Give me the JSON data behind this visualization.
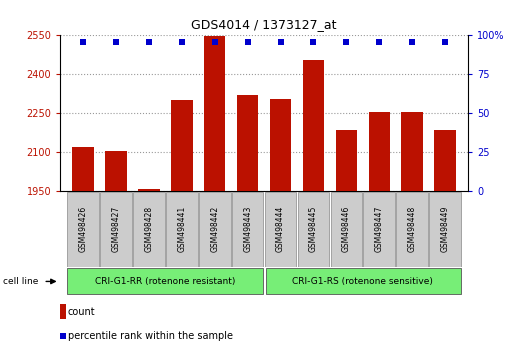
{
  "title": "GDS4014 / 1373127_at",
  "samples": [
    "GSM498426",
    "GSM498427",
    "GSM498428",
    "GSM498441",
    "GSM498442",
    "GSM498443",
    "GSM498444",
    "GSM498445",
    "GSM498446",
    "GSM498447",
    "GSM498448",
    "GSM498449"
  ],
  "counts": [
    2120,
    2105,
    1958,
    2300,
    2548,
    2320,
    2305,
    2455,
    2185,
    2255,
    2255,
    2185
  ],
  "percentile_ranks": [
    99,
    99,
    99,
    99,
    99,
    99,
    99,
    99,
    99,
    99,
    99,
    99
  ],
  "bar_color": "#bb1100",
  "dot_color": "#0000cc",
  "ylim_left": [
    1950,
    2550
  ],
  "ylim_right": [
    0,
    100
  ],
  "yticks_left": [
    1950,
    2100,
    2250,
    2400,
    2550
  ],
  "yticks_right": [
    0,
    25,
    50,
    75,
    100
  ],
  "grid_color": "#999999",
  "group1_label": "CRI-G1-RR (rotenone resistant)",
  "group2_label": "CRI-G1-RS (rotenone sensitive)",
  "group1_count": 6,
  "group2_count": 6,
  "group_bg_color": "#77ee77",
  "sample_bg_color": "#cccccc",
  "legend_count_label": "count",
  "legend_percentile_label": "percentile rank within the sample",
  "cell_line_label": "cell line"
}
